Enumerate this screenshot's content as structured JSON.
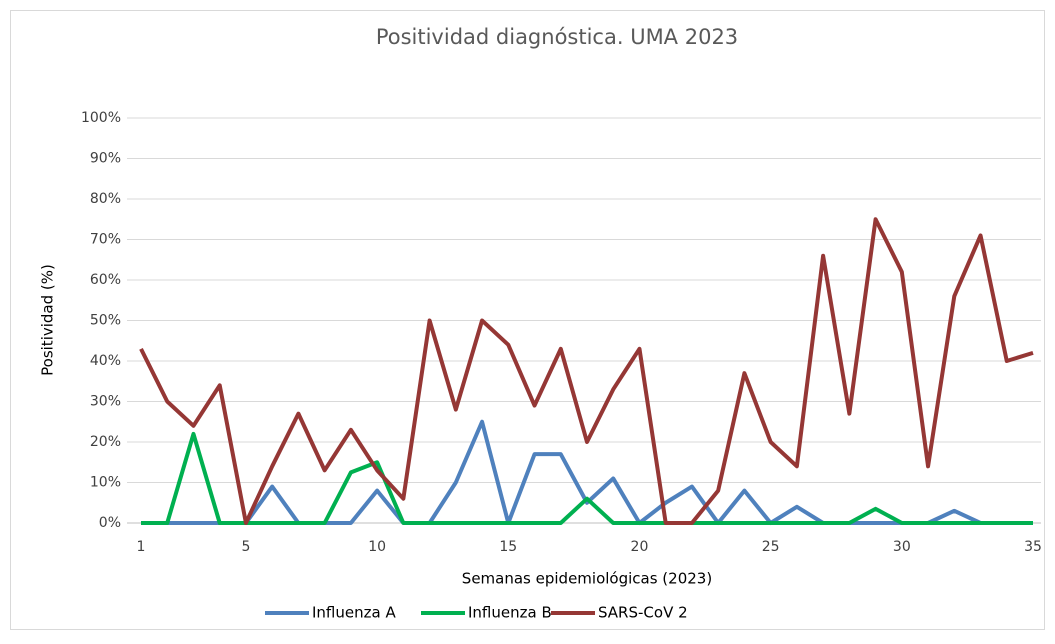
{
  "chart_data": {
    "type": "line",
    "title": "Positividad diagnóstica. UMA 2023",
    "x_label": "Semanas epidemiológicas (2023)",
    "y_label": "Positividad (%)",
    "x": [
      1,
      2,
      3,
      4,
      5,
      6,
      7,
      8,
      9,
      10,
      11,
      12,
      13,
      14,
      15,
      16,
      17,
      18,
      19,
      20,
      21,
      22,
      23,
      24,
      25,
      26,
      27,
      28,
      29,
      30,
      31,
      32,
      33,
      34,
      35
    ],
    "xlim": [
      1,
      35
    ],
    "xticks": [
      1,
      5,
      10,
      15,
      20,
      25,
      30,
      35
    ],
    "ylim": [
      0,
      100
    ],
    "yticks": [
      {
        "value": 0,
        "label": "0%"
      },
      {
        "value": 10,
        "label": "10%"
      },
      {
        "value": 20,
        "label": "20%"
      },
      {
        "value": 30,
        "label": "30%"
      },
      {
        "value": 40,
        "label": "40%"
      },
      {
        "value": 50,
        "label": "50%"
      },
      {
        "value": 60,
        "label": "60%"
      },
      {
        "value": 70,
        "label": "70%"
      },
      {
        "value": 80,
        "label": "80%"
      },
      {
        "value": 90,
        "label": "90%"
      },
      {
        "value": 100,
        "label": "100%"
      }
    ],
    "grid": true,
    "legend": "bottom",
    "series": [
      {
        "name": "Influenza A",
        "color": "#4f81bd",
        "values": [
          0,
          0,
          0,
          0,
          0,
          9,
          0,
          0,
          0,
          8,
          0,
          0,
          10,
          25,
          0,
          17,
          17,
          5,
          11,
          0,
          5,
          9,
          0,
          8,
          0,
          4,
          0,
          0,
          0,
          0,
          0,
          3,
          0,
          0,
          0
        ]
      },
      {
        "name": "Influenza B",
        "color": "#00b050",
        "values": [
          0,
          0,
          22,
          0,
          0,
          0,
          0,
          0,
          12.5,
          15,
          0,
          0,
          0,
          0,
          0,
          0,
          0,
          6,
          0,
          0,
          0,
          0,
          0,
          0,
          0,
          0,
          0,
          0,
          3.5,
          0,
          0,
          0,
          0,
          0,
          0
        ]
      },
      {
        "name": "SARS-CoV 2",
        "color": "#953735",
        "values": [
          43,
          30,
          24,
          34,
          0,
          14,
          27,
          13,
          23,
          13,
          6,
          50,
          28,
          50,
          44,
          29,
          43,
          20,
          33,
          43,
          0,
          0,
          8,
          37,
          20,
          14,
          66,
          27,
          75,
          62,
          14,
          56,
          71,
          40,
          42
        ]
      }
    ]
  }
}
